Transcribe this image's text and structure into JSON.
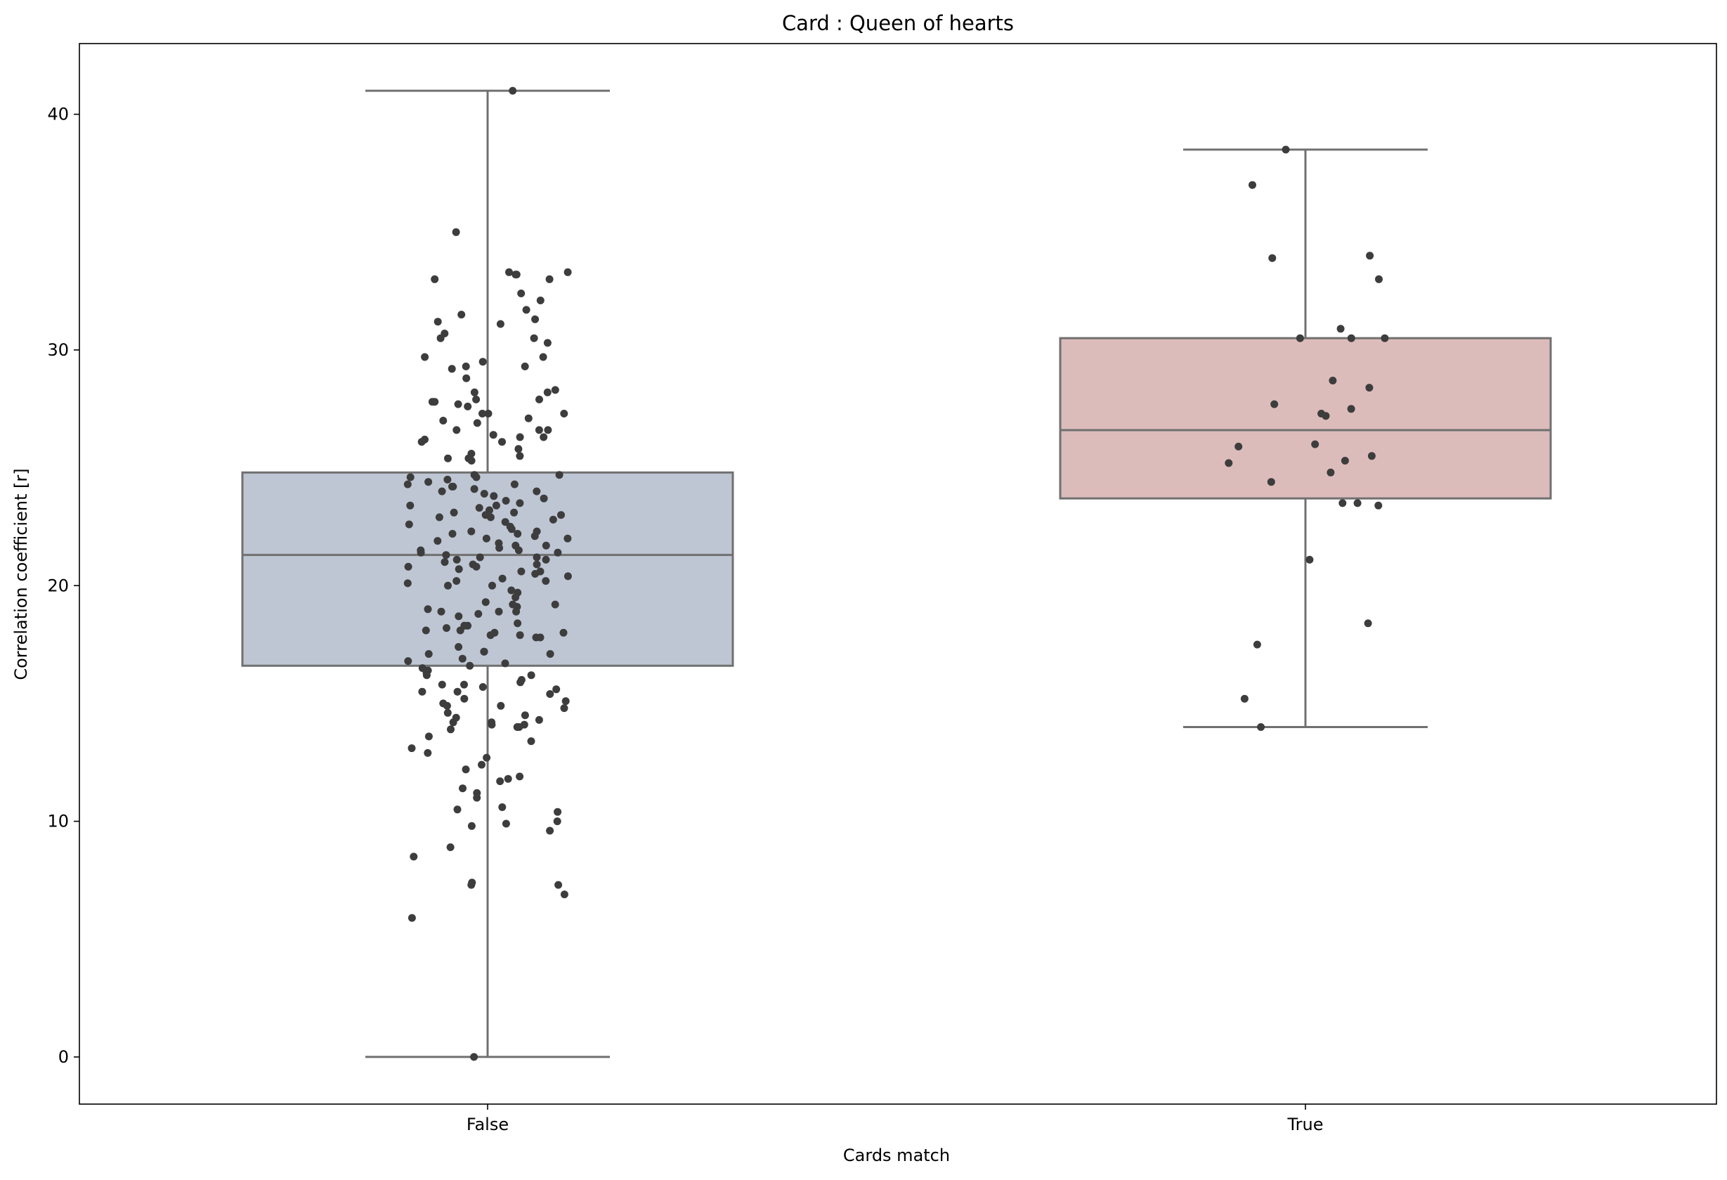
{
  "chart_data": {
    "type": "box",
    "title": "Card : Queen of hearts",
    "xlabel": "Cards match",
    "ylabel": "Correlation coefficient [r]",
    "categories": [
      "False",
      "True"
    ],
    "ylim": [
      -2,
      43
    ],
    "yticks": [
      0,
      10,
      20,
      30,
      40
    ],
    "grid": false,
    "box_colors": [
      "#bec6d3",
      "#dcbcbb"
    ],
    "line_color": "#707070",
    "point_color": "#3d3d3d",
    "boxes": [
      {
        "category": "False",
        "whisker_low": 0,
        "q1": 16.6,
        "median": 21.3,
        "q3": 24.8,
        "whisker_high": 41.0
      },
      {
        "category": "True",
        "whisker_low": 14.0,
        "q1": 23.7,
        "median": 26.6,
        "q3": 30.5,
        "whisker_high": 38.5
      }
    ],
    "points": [
      {
        "category": "False",
        "values": [
          41.0,
          35.0,
          33.3,
          33.3,
          33.2,
          33.2,
          33.0,
          33.0,
          32.4,
          32.1,
          31.7,
          31.5,
          31.3,
          31.2,
          31.1,
          30.7,
          30.5,
          30.5,
          30.3,
          29.7,
          29.7,
          29.5,
          29.3,
          29.3,
          29.2,
          28.8,
          28.3,
          28.2,
          28.2,
          27.9,
          27.9,
          27.8,
          27.8,
          27.7,
          27.6,
          27.3,
          27.3,
          27.3,
          27.1,
          27.0,
          26.9,
          26.6,
          26.6,
          26.6,
          26.4,
          26.3,
          26.3,
          26.2,
          26.1,
          26.1,
          25.8,
          25.6,
          25.5,
          25.4,
          25.4,
          25.3,
          24.7,
          24.7,
          24.6,
          24.6,
          24.5,
          24.4,
          24.3,
          24.3,
          24.2,
          24.2,
          24.1,
          24.0,
          24.0,
          23.9,
          23.8,
          23.7,
          23.6,
          23.5,
          23.4,
          23.4,
          23.3,
          23.2,
          23.1,
          23.1,
          23.0,
          23.0,
          22.9,
          22.9,
          22.8,
          22.7,
          22.6,
          22.5,
          22.4,
          22.3,
          22.3,
          22.2,
          22.2,
          22.1,
          22.0,
          22.0,
          21.9,
          21.8,
          21.7,
          21.7,
          21.6,
          21.5,
          21.5,
          21.4,
          21.4,
          21.3,
          21.2,
          21.2,
          21.1,
          21.1,
          21.0,
          20.9,
          20.9,
          20.8,
          20.8,
          20.7,
          20.6,
          20.6,
          20.5,
          20.4,
          20.3,
          20.2,
          20.2,
          20.1,
          20.0,
          20.0,
          19.8,
          19.7,
          19.5,
          19.3,
          19.2,
          19.2,
          19.1,
          19.0,
          18.9,
          18.9,
          18.9,
          18.8,
          18.7,
          18.4,
          18.3,
          18.3,
          18.2,
          18.1,
          18.1,
          18.0,
          18.0,
          17.9,
          17.9,
          17.8,
          17.8,
          17.4,
          17.2,
          17.2,
          17.1,
          17.1,
          16.9,
          16.8,
          16.7,
          16.6,
          16.5,
          16.4,
          16.3,
          16.2,
          16.2,
          16.0,
          15.9,
          15.8,
          15.8,
          15.7,
          15.6,
          15.5,
          15.5,
          15.4,
          15.2,
          15.1,
          15.0,
          14.9,
          14.9,
          14.8,
          14.6,
          14.5,
          14.4,
          14.3,
          14.2,
          14.2,
          14.1,
          14.1,
          14.0,
          14.0,
          13.9,
          13.6,
          13.4,
          13.1,
          12.9,
          12.7,
          12.4,
          12.2,
          11.9,
          11.8,
          11.7,
          11.4,
          11.2,
          11.0,
          10.6,
          10.5,
          10.4,
          10.0,
          9.9,
          9.8,
          9.6,
          8.9,
          8.5,
          7.4,
          7.3,
          7.3,
          6.9,
          5.9,
          0.0
        ]
      },
      {
        "category": "True",
        "values": [
          38.5,
          37.0,
          34.0,
          33.9,
          33.0,
          30.9,
          30.5,
          30.5,
          30.5,
          28.7,
          28.4,
          27.7,
          27.5,
          27.3,
          27.2,
          26.0,
          25.9,
          25.5,
          25.3,
          25.2,
          24.8,
          24.4,
          23.5,
          23.5,
          23.4,
          21.1,
          18.4,
          17.5,
          15.2,
          14.0
        ]
      }
    ]
  }
}
